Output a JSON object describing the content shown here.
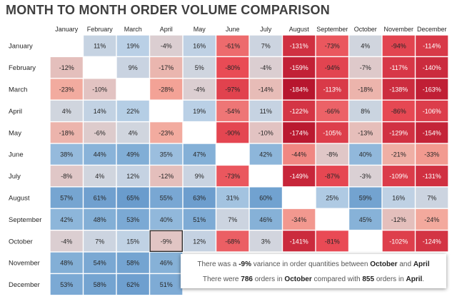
{
  "title": "MONTH TO MONTH ORDER VOLUME COMPARISON",
  "colors": {
    "text": "#262626",
    "neg_strong": "#b7162e",
    "neg_mid": "#e94b55",
    "neg_light": "#f4a79a",
    "neutral": "#d6d6dc",
    "pos_light": "#b9d0e6",
    "pos_mid": "#87b2d8",
    "pos_strong": "#6a9ccd",
    "blank": "#ffffff"
  },
  "chart_data": {
    "type": "heatmap",
    "title": "MONTH TO MONTH ORDER VOLUME COMPARISON",
    "unit": "%",
    "columns": [
      "January",
      "February",
      "March",
      "April",
      "May",
      "June",
      "July",
      "August",
      "September",
      "October",
      "November",
      "December"
    ],
    "rows": [
      "January",
      "February",
      "March",
      "April",
      "May",
      "June",
      "July",
      "August",
      "September",
      "October",
      "November",
      "December"
    ],
    "values": [
      [
        null,
        11,
        19,
        -4,
        16,
        -61,
        7,
        -131,
        -73,
        4,
        -94,
        -114
      ],
      [
        -12,
        null,
        9,
        -17,
        5,
        -80,
        -4,
        -159,
        -94,
        -7,
        -117,
        -140
      ],
      [
        -23,
        -10,
        null,
        -28,
        -4,
        -97,
        -14,
        -184,
        -113,
        -18,
        -138,
        -163
      ],
      [
        4,
        14,
        22,
        null,
        19,
        -54,
        11,
        -122,
        -66,
        8,
        -86,
        -106
      ],
      [
        -18,
        -6,
        4,
        -23,
        null,
        -90,
        -10,
        -174,
        -105,
        -13,
        -129,
        -154
      ],
      [
        38,
        44,
        49,
        35,
        47,
        null,
        42,
        -44,
        -8,
        40,
        -21,
        -33
      ],
      [
        -8,
        4,
        12,
        -12,
        9,
        -73,
        null,
        -149,
        -87,
        -3,
        -109,
        -131
      ],
      [
        57,
        61,
        65,
        55,
        63,
        31,
        60,
        null,
        25,
        59,
        16,
        7
      ],
      [
        42,
        48,
        53,
        40,
        51,
        7,
        46,
        -34,
        null,
        45,
        -12,
        -24
      ],
      [
        -4,
        7,
        15,
        -9,
        12,
        -68,
        3,
        -141,
        -81,
        null,
        -102,
        -124
      ],
      [
        48,
        54,
        58,
        46,
        null,
        null,
        null,
        null,
        null,
        null,
        null,
        null
      ],
      [
        53,
        58,
        62,
        51,
        null,
        null,
        null,
        null,
        null,
        null,
        null,
        null
      ]
    ],
    "highlighted_cell": {
      "row": "October",
      "column": "April",
      "value": -9
    }
  },
  "tooltip": {
    "line1_prefix": "There was a ",
    "variance": "-9%",
    "line1_mid": " variance in order quantities between ",
    "month_a": "October",
    "line1_and": " and ",
    "month_b": "April",
    "line2_prefix": "There were ",
    "orders_a": "786",
    "line2_mid1": " orders in ",
    "line2_month_a": "October",
    "line2_mid2": " compared with ",
    "orders_b": "855",
    "line2_mid3": " orders in ",
    "line2_month_b": "April",
    "line2_end": "."
  }
}
